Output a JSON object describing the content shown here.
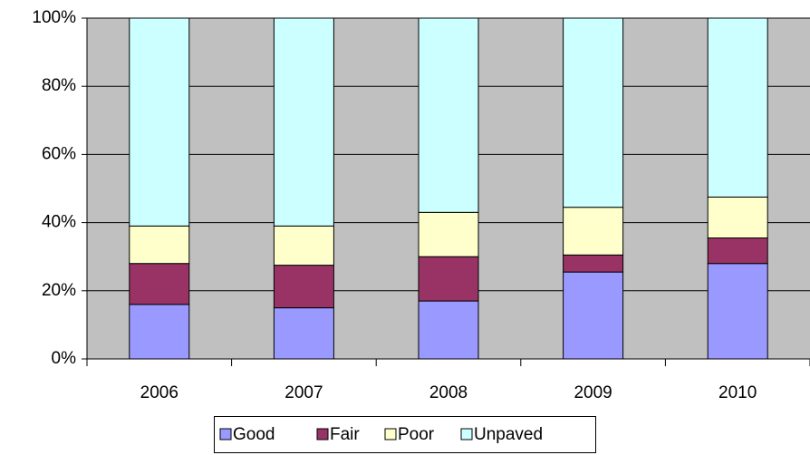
{
  "chart_data": {
    "type": "stacked_bar_percent",
    "categories": [
      "2006",
      "2007",
      "2008",
      "2009",
      "2010"
    ],
    "series": [
      {
        "name": "Good",
        "color": "#9999ff",
        "values": [
          16,
          15,
          17,
          25.5,
          28
        ]
      },
      {
        "name": "Fair",
        "color": "#993366",
        "values": [
          12,
          12.5,
          13,
          5,
          7.5
        ]
      },
      {
        "name": "Poor",
        "color": "#ffffcc",
        "values": [
          11,
          11.5,
          13,
          14,
          12
        ]
      },
      {
        "name": "Unpaved",
        "color": "#ccffff",
        "values": [
          61,
          61,
          57,
          55.5,
          52.5
        ]
      }
    ],
    "ylim": [
      0,
      100
    ],
    "yticks": [
      {
        "value": 0,
        "label": "0%"
      },
      {
        "value": 20,
        "label": "20%"
      },
      {
        "value": 40,
        "label": "40%"
      },
      {
        "value": 60,
        "label": "60%"
      },
      {
        "value": 80,
        "label": "80%"
      },
      {
        "value": 100,
        "label": "100%"
      }
    ],
    "grid": true,
    "legend": "bottom"
  }
}
